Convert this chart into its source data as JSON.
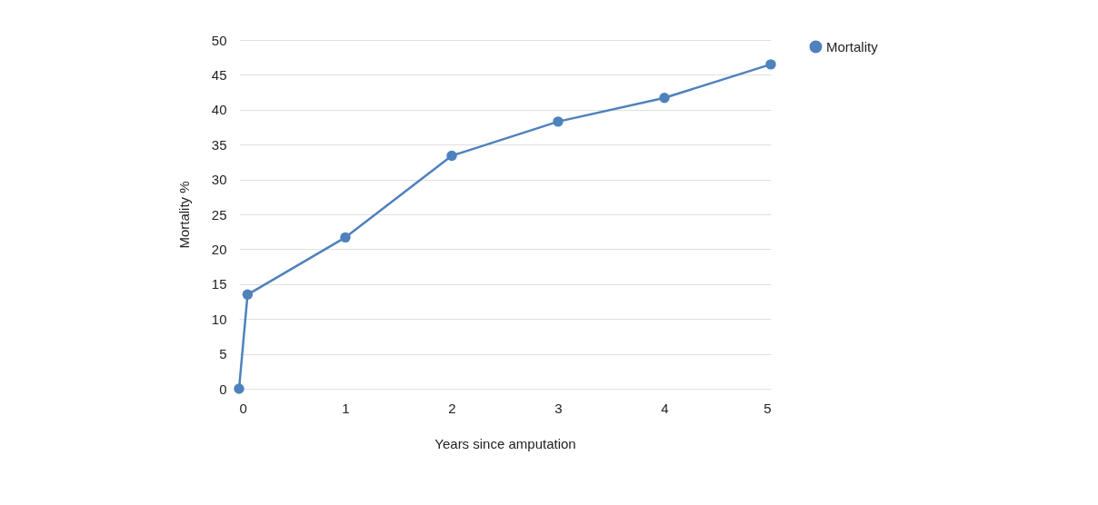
{
  "chart_data": {
    "type": "line",
    "xlabel": "Years since amputation",
    "ylabel": "Mortality %",
    "x": [
      0,
      0.08,
      1,
      2,
      3,
      4,
      5
    ],
    "series": [
      {
        "name": "Mortality",
        "color": "#4f81bd",
        "values": [
          0,
          13.5,
          21.7,
          33.4,
          38.3,
          41.7,
          46.5
        ]
      }
    ],
    "xlim": [
      0,
      5
    ],
    "xticks": [
      0,
      1,
      2,
      3,
      4,
      5
    ],
    "ylim": [
      0,
      50
    ],
    "yticks": [
      0,
      5,
      10,
      15,
      20,
      25,
      30,
      35,
      40,
      45,
      50
    ],
    "grid": "y",
    "legend": "right",
    "marker": "circle",
    "line_style": "solid"
  }
}
